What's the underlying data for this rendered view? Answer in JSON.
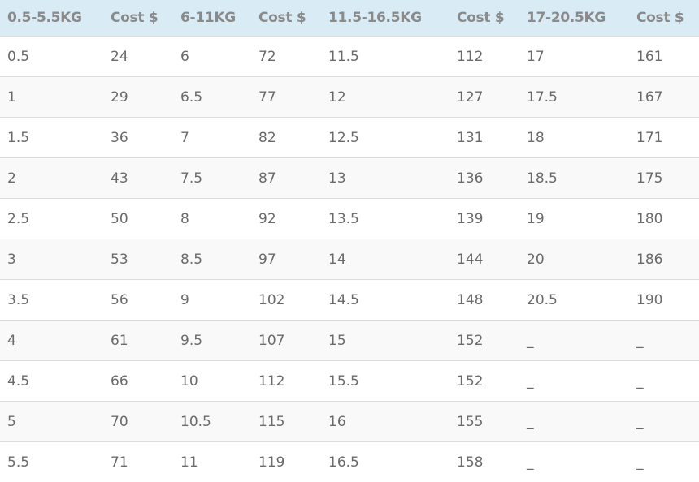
{
  "table": {
    "header": [
      "0.5-5.5KG",
      "Cost $",
      "6-11KG",
      "Cost $",
      "11.5-16.5KG",
      "Cost $",
      "17-20.5KG",
      "Cost $"
    ],
    "rows": [
      [
        "0.5",
        "24",
        "6",
        "72",
        "11.5",
        "112",
        "17",
        "161"
      ],
      [
        "1",
        "29",
        "6.5",
        "77",
        "12",
        "127",
        "17.5",
        "167"
      ],
      [
        "1.5",
        "36",
        "7",
        "82",
        "12.5",
        "131",
        "18",
        "171"
      ],
      [
        "2",
        "43",
        "7.5",
        "87",
        "13",
        "136",
        "18.5",
        "175"
      ],
      [
        "2.5",
        "50",
        "8",
        "92",
        "13.5",
        "139",
        "19",
        "180"
      ],
      [
        "3",
        "53",
        "8.5",
        "97",
        "14",
        "144",
        "20",
        "186"
      ],
      [
        "3.5",
        "56",
        "9",
        "102",
        "14.5",
        "148",
        "20.5",
        "190"
      ],
      [
        "4",
        "61",
        "9.5",
        "107",
        "15",
        "152",
        "_",
        "_"
      ],
      [
        "4.5",
        "66",
        "10",
        "112",
        "15.5",
        "152",
        "_",
        "_"
      ],
      [
        "5",
        "70",
        "10.5",
        "115",
        "16",
        "155",
        "_",
        "_"
      ],
      [
        "5.5",
        "71",
        "11",
        "119",
        "16.5",
        "158",
        "_",
        "_"
      ]
    ]
  }
}
